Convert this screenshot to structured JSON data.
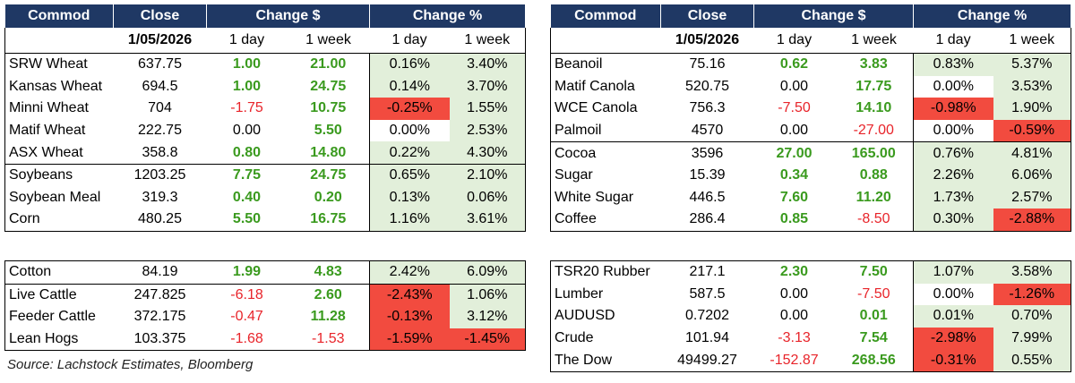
{
  "headers": {
    "commod": "Commod",
    "close": "Close",
    "change_dollar": "Change $",
    "change_pct": "Change %"
  },
  "subheaders": {
    "date": "1/05/2026",
    "one_day": "1 day",
    "one_week": "1 week"
  },
  "tables": [
    {
      "id": "left-top",
      "rows": [
        {
          "name": "SRW Wheat",
          "close": "637.75",
          "d1": "1.00",
          "w1": "21.00",
          "p1": "0.16%",
          "pw": "3.40%"
        },
        {
          "name": "Kansas Wheat",
          "close": "694.5",
          "d1": "1.00",
          "w1": "24.75",
          "p1": "0.14%",
          "pw": "3.70%"
        },
        {
          "name": "Minni Wheat",
          "close": "704",
          "d1": "-1.75",
          "w1": "10.75",
          "p1": "-0.25%",
          "pw": "1.55%"
        },
        {
          "name": "Matif Wheat",
          "close": "222.75",
          "d1": "0.00",
          "w1": "5.50",
          "p1": "0.00%",
          "pw": "2.53%"
        },
        {
          "name": "ASX Wheat",
          "close": "358.8",
          "d1": "0.80",
          "w1": "14.80",
          "p1": "0.22%",
          "pw": "4.30%"
        },
        {
          "name": "Soybeans",
          "close": "1203.25",
          "d1": "7.75",
          "w1": "24.75",
          "p1": "0.65%",
          "pw": "2.10%"
        },
        {
          "name": "Soybean Meal",
          "close": "319.3",
          "d1": "0.40",
          "w1": "0.20",
          "p1": "0.13%",
          "pw": "0.06%"
        },
        {
          "name": "Corn",
          "close": "480.25",
          "d1": "5.50",
          "w1": "16.75",
          "p1": "1.16%",
          "pw": "3.61%"
        }
      ]
    },
    {
      "id": "right-top",
      "rows": [
        {
          "name": "Beanoil",
          "close": "75.16",
          "d1": "0.62",
          "w1": "3.83",
          "p1": "0.83%",
          "pw": "5.37%"
        },
        {
          "name": "Matif Canola",
          "close": "520.75",
          "d1": "0.00",
          "w1": "17.75",
          "p1": "0.00%",
          "pw": "3.53%"
        },
        {
          "name": "WCE Canola",
          "close": "756.3",
          "d1": "-7.50",
          "w1": "14.10",
          "p1": "-0.98%",
          "pw": "1.90%"
        },
        {
          "name": "Palmoil",
          "close": "4570",
          "d1": "0.00",
          "w1": "-27.00",
          "p1": "0.00%",
          "pw": "-0.59%"
        },
        {
          "name": "Cocoa",
          "close": "3596",
          "d1": "27.00",
          "w1": "165.00",
          "p1": "0.76%",
          "pw": "4.81%"
        },
        {
          "name": "Sugar",
          "close": "15.39",
          "d1": "0.34",
          "w1": "0.88",
          "p1": "2.26%",
          "pw": "6.06%"
        },
        {
          "name": "White Sugar",
          "close": "446.5",
          "d1": "7.60",
          "w1": "11.20",
          "p1": "1.73%",
          "pw": "2.57%"
        },
        {
          "name": "Coffee",
          "close": "286.4",
          "d1": "0.85",
          "w1": "-8.50",
          "p1": "0.30%",
          "pw": "-2.88%"
        }
      ]
    },
    {
      "id": "left-bottom",
      "rows": [
        {
          "name": "Cotton",
          "close": "84.19",
          "d1": "1.99",
          "w1": "4.83",
          "p1": "2.42%",
          "pw": "6.09%"
        },
        {
          "name": "Live Cattle",
          "close": "247.825",
          "d1": "-6.18",
          "w1": "2.60",
          "p1": "-2.43%",
          "pw": "1.06%"
        },
        {
          "name": "Feeder Cattle",
          "close": "372.175",
          "d1": "-0.47",
          "w1": "11.28",
          "p1": "-0.13%",
          "pw": "3.12%"
        },
        {
          "name": "Lean Hogs",
          "close": "103.375",
          "d1": "-1.68",
          "w1": "-1.53",
          "p1": "-1.59%",
          "pw": "-1.45%"
        }
      ]
    },
    {
      "id": "right-bottom",
      "rows": [
        {
          "name": "TSR20 Rubber",
          "close": "217.1",
          "d1": "2.30",
          "w1": "7.50",
          "p1": "1.07%",
          "pw": "3.58%"
        },
        {
          "name": "Lumber",
          "close": "587.5",
          "d1": "0.00",
          "w1": "-7.50",
          "p1": "0.00%",
          "pw": "-1.26%"
        },
        {
          "name": "AUDUSD",
          "close": "0.7202",
          "d1": "0.00",
          "w1": "0.01",
          "p1": "0.01%",
          "pw": "0.70%"
        },
        {
          "name": "Crude",
          "close": "101.94",
          "d1": "-3.13",
          "w1": "7.54",
          "p1": "-2.98%",
          "pw": "7.99%"
        },
        {
          "name": "The Dow",
          "close": "49499.27",
          "d1": "-152.87",
          "w1": "268.56",
          "p1": "-0.31%",
          "pw": "0.55%"
        }
      ]
    }
  ],
  "source": "Source: Lachstock Estimates, Bloomberg",
  "colors": {
    "header_bg": "#1f3864",
    "pos_text": "#3a9a1e",
    "neg_text": "#e8242a",
    "pos_cell": "#e2efda",
    "neg_cell": "#f24b3f"
  }
}
